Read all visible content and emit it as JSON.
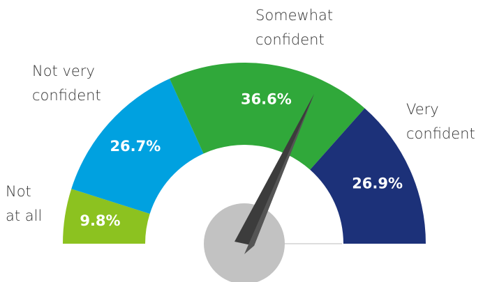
{
  "chart_data": {
    "type": "gauge",
    "categories": [
      "Not at all",
      "Not very confident",
      "Somewhat confident",
      "Very confident"
    ],
    "values": [
      9.8,
      26.7,
      36.6,
      26.9
    ],
    "value_labels": [
      "9.8%",
      "26.7%",
      "36.6%",
      "26.9%"
    ],
    "colors": [
      "#8cc220",
      "#00a1e0",
      "#30a83a",
      "#1c3179"
    ]
  }
}
